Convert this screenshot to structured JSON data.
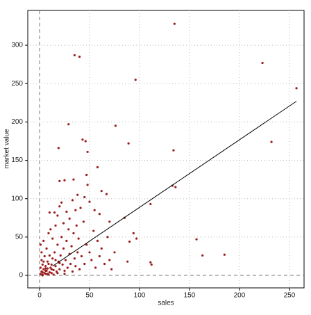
{
  "chart_data": {
    "type": "scatter",
    "x_label": "sales",
    "y_label": "market value",
    "color": "#9b1c1c",
    "grid": true,
    "xlim": [
      -11.8,
      264.6
    ],
    "ylim": [
      -16.3,
      345.4
    ],
    "xticks": [
      0,
      50,
      100,
      150,
      200,
      250
    ],
    "yticks": [
      0,
      50,
      100,
      150,
      200,
      250,
      300
    ],
    "fit": {
      "x": [
        13,
        257
      ],
      "y": [
        12,
        227
      ]
    },
    "x": [
      135,
      223,
      257,
      96,
      35,
      40,
      29,
      76,
      89,
      46,
      43,
      134,
      232,
      19,
      48,
      133,
      136,
      111,
      157,
      163,
      185,
      97,
      90,
      94,
      112,
      111,
      88,
      58,
      47,
      48,
      62,
      67,
      50,
      38,
      25,
      20,
      34,
      85,
      70,
      60,
      55,
      1,
      2,
      3,
      4,
      5,
      6,
      7,
      8,
      9,
      10,
      2,
      3,
      5,
      6,
      8,
      11,
      12,
      13,
      14,
      15,
      16,
      17,
      18,
      19,
      20,
      21,
      22,
      23,
      24,
      25,
      26,
      27,
      28,
      29,
      30,
      31,
      32,
      33,
      34,
      35,
      36,
      37,
      38,
      39,
      40,
      42,
      44,
      45,
      47,
      50,
      52,
      54,
      56,
      58,
      60,
      62,
      65,
      68,
      70,
      72,
      75,
      1,
      2,
      4,
      7,
      9,
      11,
      13,
      15,
      10,
      16,
      18,
      20,
      22,
      24,
      27,
      30,
      33,
      36,
      41,
      45,
      1,
      3,
      4,
      6,
      8,
      10,
      12,
      14,
      16,
      18,
      20,
      25,
      3,
      6,
      9,
      12
    ],
    "y": [
      328,
      277,
      244,
      255,
      287,
      285,
      197,
      195,
      172,
      175,
      177,
      163,
      174,
      166,
      161,
      117,
      115,
      93,
      47,
      26,
      27,
      48,
      44,
      55,
      14,
      17,
      18,
      141,
      131,
      118,
      110,
      106,
      96,
      105,
      124,
      123,
      125,
      75,
      70,
      80,
      85,
      2,
      5,
      1,
      8,
      3,
      12,
      6,
      2,
      15,
      4,
      20,
      14,
      25,
      9,
      18,
      10,
      3,
      22,
      7,
      30,
      12,
      5,
      40,
      18,
      8,
      26,
      50,
      14,
      35,
      6,
      20,
      45,
      10,
      60,
      28,
      15,
      38,
      5,
      55,
      22,
      12,
      65,
      30,
      48,
      8,
      25,
      70,
      15,
      40,
      30,
      20,
      58,
      10,
      45,
      25,
      35,
      15,
      50,
      20,
      8,
      30,
      40,
      30,
      45,
      35,
      55,
      60,
      48,
      82,
      82,
      65,
      78,
      90,
      95,
      68,
      83,
      74,
      98,
      85,
      88,
      102,
      10,
      4,
      18,
      2,
      9,
      26,
      14,
      1,
      20,
      3,
      16,
      2,
      0,
      6,
      1,
      8
    ]
  }
}
